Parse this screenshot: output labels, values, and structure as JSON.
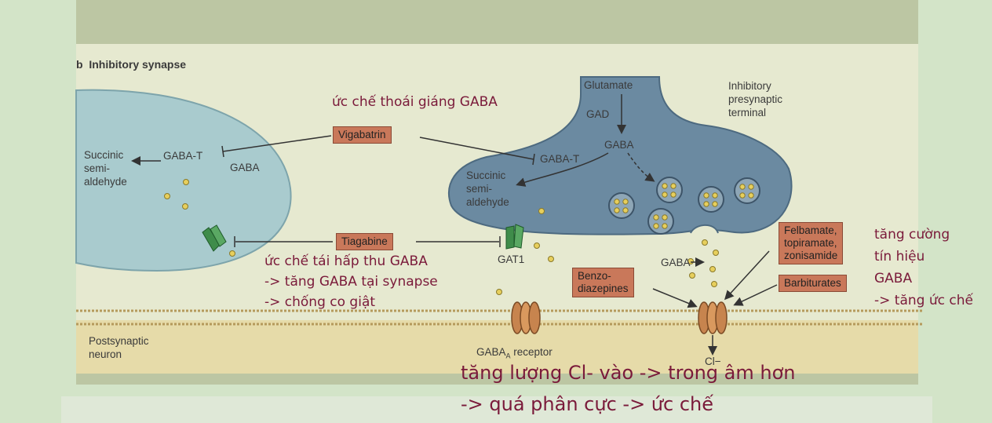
{
  "panel_title": {
    "letter": "b",
    "text": "Inhibitory synapse"
  },
  "labels": {
    "succinic_left": [
      "Succinic",
      "semi-",
      "aldehyde"
    ],
    "gaba_t_left": "GABA-T",
    "gaba_left": "GABA",
    "glutamate": "Glutamate",
    "gad": "GAD",
    "gaba_center": "GABA",
    "gaba_t_center": "GABA-T",
    "succinic_center": [
      "Succinic",
      "semi-",
      "aldehyde"
    ],
    "inhibitory_terminal": [
      "Inhibitory",
      "presynaptic",
      "terminal"
    ],
    "gat1": "GAT1",
    "gaba_cleft": "GABA",
    "postsynaptic": [
      "Postsynaptic",
      "neuron"
    ],
    "gaba_a_receptor": {
      "main": "GABA",
      "sub": "A",
      "rest": " receptor"
    },
    "chloride": "Cl−"
  },
  "drugs": {
    "vigabatrin": "Vigabatrin",
    "tiagabine": "Tiagabine",
    "felbamate": [
      "Felbamate,",
      "topiramate,",
      "zonisamide"
    ],
    "benzodiazepines": [
      "Benzo-",
      "diazepines"
    ],
    "barbiturates": "Barbiturates"
  },
  "notes": {
    "vigabatrin_note": "ức chế thoái giáng GABA",
    "tiagabine_note": [
      "ức chế tái hấp thu GABA",
      "-> tăng GABA tại synapse",
      "-> chống co giật"
    ],
    "enhance_note": [
      "tăng cường",
      "tín hiệu",
      "GABA",
      "-> tăng ức chế"
    ],
    "chloride_note": [
      "tăng lượng Cl- vào -> trong âm hơn",
      "-> quá phân cực -> ức chế"
    ]
  },
  "colors": {
    "slide_bg": "#d3e4c8",
    "figure_bg": "#e6e9d0",
    "top_band": "#bcc6a3",
    "glial_fill": "#a9cbce",
    "terminal_fill": "#6b8aa1",
    "drug_box": "#c9785a",
    "note_text": "#7a1a3a",
    "membrane": "#b59a5c",
    "postsynaptic_fill": "#e6dba9",
    "receptor": "#c7844e",
    "transporter": "#3f8c4a",
    "gaba_dot": "#e7cf5d"
  }
}
